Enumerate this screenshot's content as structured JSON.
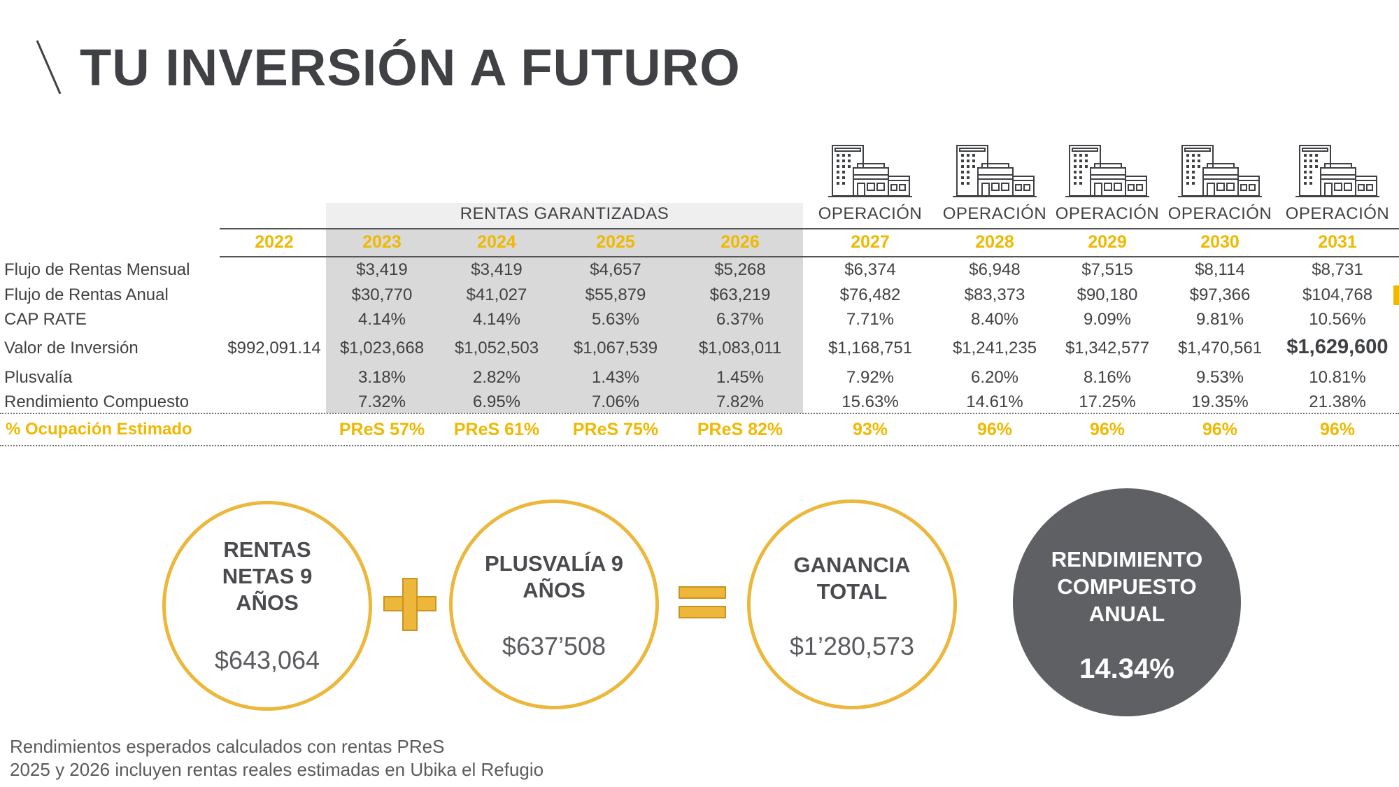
{
  "title": "TU INVERSIÓN A FUTURO",
  "table": {
    "group_header": "RENTAS GARANTIZADAS",
    "operation_label": "OPERACIÓN",
    "years": [
      "2022",
      "2023",
      "2024",
      "2025",
      "2026",
      "2027",
      "2028",
      "2029",
      "2030",
      "2031"
    ],
    "rows": [
      {
        "label": "Flujo de Rentas Mensual",
        "values": [
          "",
          "$3,419",
          "$3,419",
          "$4,657",
          "$5,268",
          "$6,374",
          "$6,948",
          "$7,515",
          "$8,114",
          "$8,731"
        ]
      },
      {
        "label": "Flujo de Rentas Anual",
        "values": [
          "",
          "$30,770",
          "$41,027",
          "$55,879",
          "$63,219",
          "$76,482",
          "$83,373",
          "$90,180",
          "$97,366",
          "$104,768"
        ]
      },
      {
        "label": "CAP RATE",
        "values": [
          "",
          "4.14%",
          "4.14%",
          "5.63%",
          "6.37%",
          "7.71%",
          "8.40%",
          "9.09%",
          "9.81%",
          "10.56%"
        ]
      },
      {
        "label": "Valor de Inversión",
        "values": [
          "$992,091.14",
          "$1,023,668",
          "$1,052,503",
          "$1,067,539",
          "$1,083,011",
          "$1,168,751",
          "$1,241,235",
          "$1,342,577",
          "$1,470,561",
          "$1,629,600"
        ]
      },
      {
        "label": "Plusvalía",
        "values": [
          "",
          "3.18%",
          "2.82%",
          "1.43%",
          "1.45%",
          "7.92%",
          "6.20%",
          "8.16%",
          "9.53%",
          "10.81%"
        ]
      },
      {
        "label": "Rendimiento Compuesto",
        "values": [
          "",
          "7.32%",
          "6.95%",
          "7.06%",
          "7.82%",
          "15.63%",
          "14.61%",
          "17.25%",
          "19.35%",
          "21.38%"
        ]
      }
    ],
    "occupancy": {
      "label": "% Ocupación Estimado",
      "values": [
        "",
        "PReS 57%",
        "PReS 61%",
        "PReS 75%",
        "PReS 82%",
        "93%",
        "96%",
        "96%",
        "96%",
        "96%"
      ]
    }
  },
  "summary": {
    "rentas_title": [
      "RENTAS",
      "NETAS 9",
      "AÑOS"
    ],
    "rentas_value": "$643,064",
    "plusvalia_title": [
      "PLUSVALÍA 9",
      "AÑOS"
    ],
    "plusvalia_value": "$637’508",
    "ganancia_title": [
      "GANANCIA",
      "TOTAL"
    ],
    "ganancia_value": "$1’280,573",
    "rendimiento_title": [
      "RENDIMIENTO",
      "COMPUESTO",
      "ANUAL"
    ],
    "rendimiento_value": "14.34%"
  },
  "footnotes": [
    "Rendimientos esperados calculados con rentas PReS",
    "2025 y 2026 incluyen rentas reales estimadas en Ubika el Refugio"
  ],
  "colors": {
    "accent": "#f0b800",
    "circle_border": "#ecb73a",
    "dark_circle": "#5f6063",
    "text": "#404144"
  },
  "icons": [
    "building-icon"
  ]
}
